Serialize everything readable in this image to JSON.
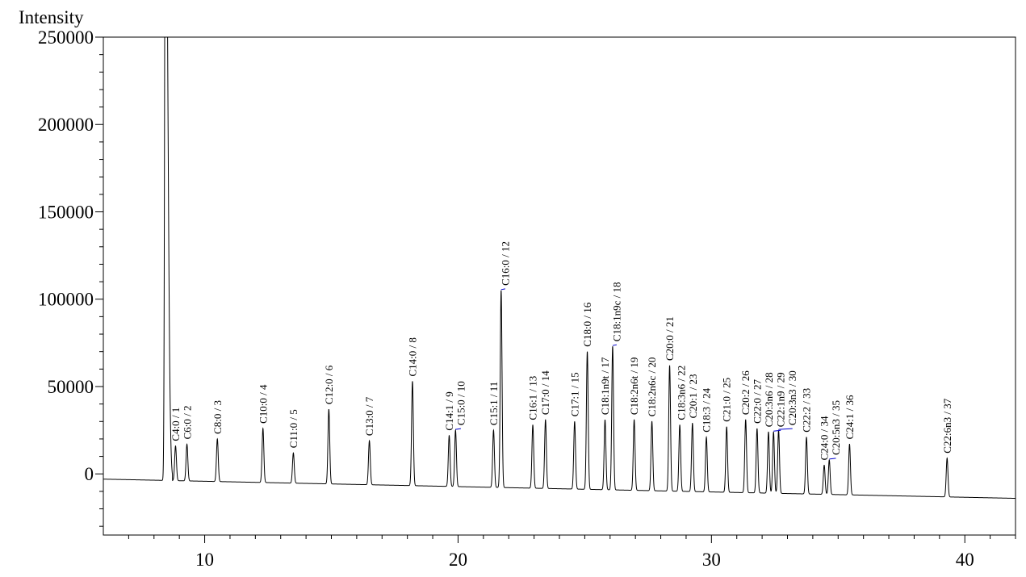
{
  "chart_data": {
    "type": "line",
    "title": "",
    "xlabel": "",
    "ylabel": "Intensity",
    "xlim": [
      6,
      42
    ],
    "ylim": [
      -35000,
      250000
    ],
    "x_ticks": [
      10,
      20,
      30,
      40
    ],
    "x_tick_labels": [
      "10",
      "20",
      "30",
      "40"
    ],
    "y_ticks": [
      0,
      50000,
      100000,
      150000,
      200000,
      250000
    ],
    "y_tick_labels": [
      "0",
      "50000",
      "100000",
      "150000",
      "200000",
      "250000"
    ],
    "grid": false,
    "line_color": "#000000",
    "leader_color": "#0000cc",
    "baseline": {
      "start": [
        6,
        -3000
      ],
      "end": [
        42,
        -14000
      ]
    },
    "solvent_peak": {
      "x": 8.45,
      "y": 400000
    },
    "peaks": [
      {
        "label": "C4:0 / 1",
        "x": 8.85,
        "y": 16000
      },
      {
        "label": "C6:0 / 2",
        "x": 9.3,
        "y": 17000
      },
      {
        "label": "C8:0 / 3",
        "x": 10.5,
        "y": 20000
      },
      {
        "label": "C10:0 / 4",
        "x": 12.3,
        "y": 26000
      },
      {
        "label": "C11:0 / 5",
        "x": 13.5,
        "y": 12000
      },
      {
        "label": "C12:0 / 6",
        "x": 14.9,
        "y": 37000
      },
      {
        "label": "C13:0 / 7",
        "x": 16.5,
        "y": 19000
      },
      {
        "label": "C14:0 / 8",
        "x": 18.2,
        "y": 53000
      },
      {
        "label": "C14:1 / 9",
        "x": 19.65,
        "y": 22000
      },
      {
        "label": "C15:0 / 10",
        "x": 19.9,
        "y": 25000
      },
      {
        "label": "C15:1 / 11",
        "x": 21.4,
        "y": 25000
      },
      {
        "label": "C16:0 / 12",
        "x": 21.7,
        "y": 105000
      },
      {
        "label": "C16:1 / 13",
        "x": 22.95,
        "y": 28000
      },
      {
        "label": "C17:0 / 14",
        "x": 23.45,
        "y": 31000
      },
      {
        "label": "C17:1 / 15",
        "x": 24.6,
        "y": 30000
      },
      {
        "label": "C18:0 / 16",
        "x": 25.1,
        "y": 70000
      },
      {
        "label": "C18:1n9t / 17",
        "x": 25.8,
        "y": 31000
      },
      {
        "label": "C18:1n9c / 18",
        "x": 26.1,
        "y": 73000
      },
      {
        "label": "C18:2n6t / 19",
        "x": 26.95,
        "y": 31000
      },
      {
        "label": "C18:2n6c / 20",
        "x": 27.65,
        "y": 30000
      },
      {
        "label": "C20:0 / 21",
        "x": 28.35,
        "y": 62000
      },
      {
        "label": "C18:3n6 / 22",
        "x": 28.75,
        "y": 28000
      },
      {
        "label": "C20:1 / 23",
        "x": 29.25,
        "y": 29000
      },
      {
        "label": "C18:3 / 24",
        "x": 29.8,
        "y": 21000
      },
      {
        "label": "C21:0 / 25",
        "x": 30.6,
        "y": 27000
      },
      {
        "label": "C20:2 / 26",
        "x": 31.35,
        "y": 31000
      },
      {
        "label": "C22:0 / 27",
        "x": 31.8,
        "y": 26000
      },
      {
        "label": "C20:3n6 / 28",
        "x": 32.25,
        "y": 24000
      },
      {
        "label": "C22:1n9 / 29",
        "x": 32.45,
        "y": 24000
      },
      {
        "label": "C20:3n3 / 30",
        "x": 32.65,
        "y": 25000
      },
      {
        "label": "C22:2 / 33",
        "x": 33.75,
        "y": 21000
      },
      {
        "label": "C24:0 / 34",
        "x": 34.45,
        "y": 5000
      },
      {
        "label": "C20:5n3 / 35",
        "x": 34.65,
        "y": 8000
      },
      {
        "label": "C24:1 / 36",
        "x": 35.45,
        "y": 17000
      },
      {
        "label": "C22:6n3 / 37",
        "x": 39.3,
        "y": 9000
      }
    ]
  }
}
